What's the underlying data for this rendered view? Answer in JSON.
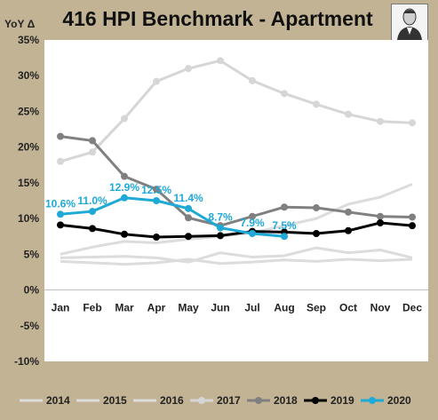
{
  "chart_data": {
    "type": "line",
    "title": "416 HPI Benchmark - Apartment",
    "ylabel": "YoY Δ",
    "categories": [
      "Jan",
      "Feb",
      "Mar",
      "Apr",
      "May",
      "Jun",
      "Jul",
      "Aug",
      "Sep",
      "Oct",
      "Nov",
      "Dec"
    ],
    "ylim": [
      -10,
      35
    ],
    "yticks": [
      -10,
      -5,
      0,
      5,
      10,
      15,
      20,
      25,
      30,
      35
    ],
    "ytick_labels": [
      "-10%",
      "-5%",
      "0%",
      "5%",
      "10%",
      "15%",
      "20%",
      "25%",
      "30%",
      "35%"
    ],
    "grid": false,
    "legend_position": "bottom",
    "series": [
      {
        "name": "2014",
        "color": "#dcdcdc",
        "marker": false,
        "values": [
          4.0,
          3.8,
          3.6,
          3.8,
          4.3,
          3.7,
          3.9,
          4.2,
          4.0,
          4.3,
          4.1,
          4.3
        ]
      },
      {
        "name": "2015",
        "color": "#dcdcdc",
        "marker": false,
        "values": [
          4.5,
          4.6,
          4.7,
          4.5,
          3.9,
          5.2,
          4.6,
          4.8,
          5.9,
          5.2,
          5.6,
          4.5
        ]
      },
      {
        "name": "2016",
        "color": "#dcdcdc",
        "marker": false,
        "values": [
          5.0,
          6.0,
          6.8,
          6.6,
          7.1,
          7.5,
          8.0,
          9.0,
          10.0,
          12.0,
          13.0,
          14.8
        ]
      },
      {
        "name": "2017",
        "color": "#d6d6d6",
        "marker": true,
        "values": [
          18.0,
          19.3,
          24.0,
          29.2,
          31.0,
          32.1,
          29.3,
          27.5,
          26.0,
          24.6,
          23.6,
          23.4
        ]
      },
      {
        "name": "2018",
        "color": "#808080",
        "marker": true,
        "values": [
          21.5,
          20.9,
          15.9,
          14.1,
          10.1,
          9.0,
          10.3,
          11.6,
          11.5,
          10.9,
          10.3,
          10.2
        ]
      },
      {
        "name": "2019",
        "color": "#000000",
        "marker": true,
        "values": [
          9.1,
          8.6,
          7.8,
          7.4,
          7.5,
          7.6,
          8.2,
          8.1,
          7.9,
          8.3,
          9.4,
          9.0
        ]
      },
      {
        "name": "2020",
        "color": "#1fa9d6",
        "marker": true,
        "values": [
          10.6,
          11.0,
          12.9,
          12.5,
          11.4,
          8.7,
          7.9,
          7.5,
          null,
          null,
          null,
          null
        ],
        "data_labels": [
          "10.6%",
          "11.0%",
          "12.9%",
          "12.5%",
          "11.4%",
          "8.7%",
          "7.9%",
          "7.5%"
        ]
      }
    ]
  }
}
